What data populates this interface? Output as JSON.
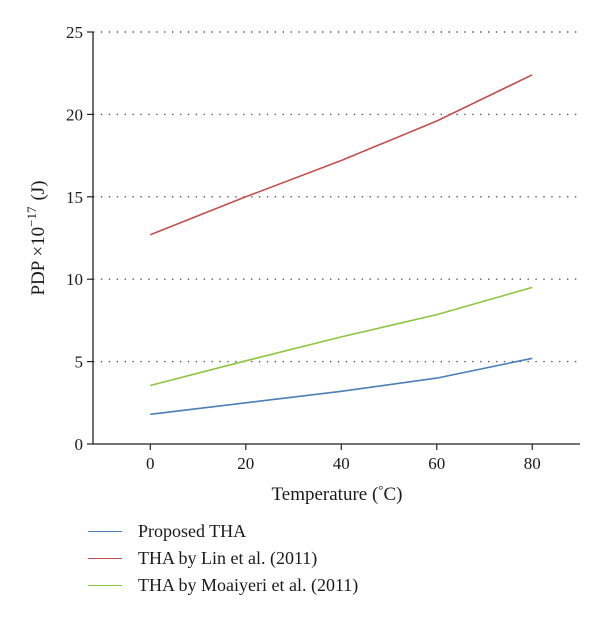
{
  "chart_data": {
    "type": "line",
    "xlabel": "Temperature (",
    "xlabel_suffix": "C)",
    "xlabel_degree": "°",
    "ylabel": "PDP ×10",
    "ylabel_exponent": "−17",
    "ylabel_unit": "(J)",
    "xlim": [
      -12,
      90
    ],
    "ylim": [
      0,
      25
    ],
    "xticks": [
      0,
      20,
      40,
      60,
      80
    ],
    "yticks": [
      0,
      5,
      10,
      15,
      20,
      25
    ],
    "grid": "horizontal-dotted",
    "legend_position": "bottom",
    "series": [
      {
        "name": "Proposed THA",
        "color": "#4a7fb5",
        "x": [
          0,
          20,
          40,
          60,
          80
        ],
        "y": [
          1.8,
          2.5,
          3.2,
          4.0,
          5.2
        ]
      },
      {
        "name": "THA by Lin et al. (2011)",
        "color": "#c0504d",
        "x": [
          0,
          20,
          40,
          60,
          80
        ],
        "y": [
          12.7,
          15.0,
          17.2,
          19.6,
          22.4
        ]
      },
      {
        "name": "THA by Moaiyeri et al. (2011)",
        "color": "#8dc63f",
        "x": [
          0,
          20,
          40,
          60,
          80
        ],
        "y": [
          3.55,
          5.05,
          6.5,
          7.85,
          9.5
        ]
      }
    ]
  }
}
